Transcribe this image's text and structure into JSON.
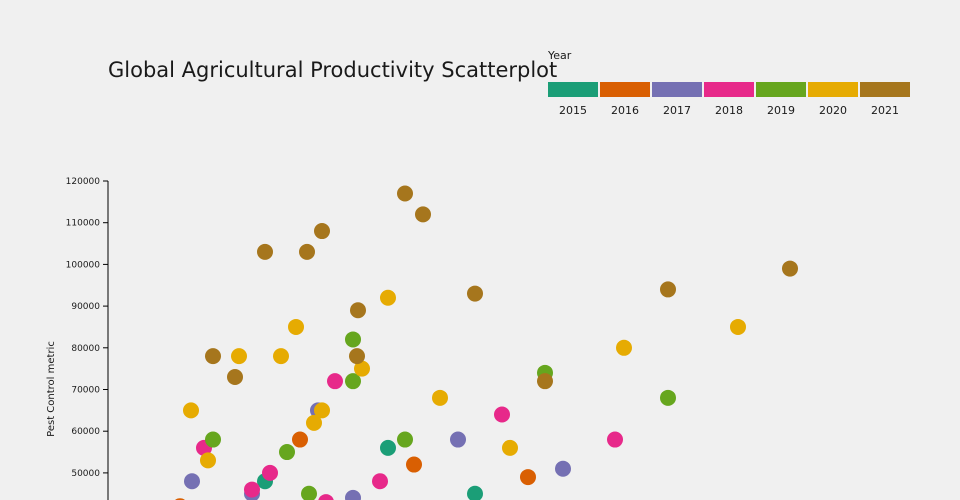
{
  "chart_data": {
    "type": "scatter",
    "title": "Global Agricultural Productivity Scatterplot",
    "ylabel": "Pest Control metric",
    "xlabel": "",
    "ylim": [
      40000,
      120000
    ],
    "yticks": [
      "50000",
      "60000",
      "70000",
      "80000",
      "90000",
      "100000",
      "110000",
      "120000"
    ],
    "legend_title": "Year",
    "legend_position": "top-right",
    "grid": false,
    "series": [
      {
        "name": "2015",
        "color": "#1b9e77",
        "points": [
          [
            265,
            48000
          ],
          [
            388,
            56000
          ],
          [
            475,
            45000
          ]
        ]
      },
      {
        "name": "2016",
        "color": "#d95f02",
        "points": [
          [
            180,
            42000
          ],
          [
            300,
            58000
          ],
          [
            414,
            52000
          ],
          [
            528,
            49000
          ]
        ]
      },
      {
        "name": "2017",
        "color": "#7570b3",
        "points": [
          [
            192,
            48000
          ],
          [
            252,
            45000
          ],
          [
            318,
            65000
          ],
          [
            353,
            44000
          ],
          [
            458,
            58000
          ],
          [
            563,
            51000
          ]
        ]
      },
      {
        "name": "2018",
        "color": "#e7298a",
        "points": [
          [
            204,
            56000
          ],
          [
            252,
            46000
          ],
          [
            270,
            50000
          ],
          [
            326,
            43000
          ],
          [
            335,
            72000
          ],
          [
            380,
            48000
          ],
          [
            502,
            64000
          ],
          [
            615,
            58000
          ]
        ]
      },
      {
        "name": "2019",
        "color": "#66a61e",
        "points": [
          [
            213,
            58000
          ],
          [
            287,
            55000
          ],
          [
            309,
            45000
          ],
          [
            353,
            82000
          ],
          [
            353,
            72000
          ],
          [
            405,
            58000
          ],
          [
            545,
            74000
          ],
          [
            668,
            68000
          ]
        ]
      },
      {
        "name": "2020",
        "color": "#e6ab02",
        "points": [
          [
            191,
            65000
          ],
          [
            208,
            53000
          ],
          [
            239,
            78000
          ],
          [
            281,
            78000
          ],
          [
            296,
            85000
          ],
          [
            314,
            62000
          ],
          [
            322,
            65000
          ],
          [
            362,
            75000
          ],
          [
            388,
            92000
          ],
          [
            440,
            68000
          ],
          [
            510,
            56000
          ],
          [
            624,
            80000
          ],
          [
            738,
            85000
          ]
        ]
      },
      {
        "name": "2021",
        "color": "#a6761d",
        "points": [
          [
            213,
            78000
          ],
          [
            235,
            73000
          ],
          [
            265,
            103000
          ],
          [
            307,
            103000
          ],
          [
            322,
            108000
          ],
          [
            357,
            78000
          ],
          [
            358,
            89000
          ],
          [
            405,
            117000
          ],
          [
            423,
            112000
          ],
          [
            475,
            93000
          ],
          [
            545,
            72000
          ],
          [
            668,
            94000
          ],
          [
            790,
            99000
          ]
        ]
      }
    ]
  }
}
